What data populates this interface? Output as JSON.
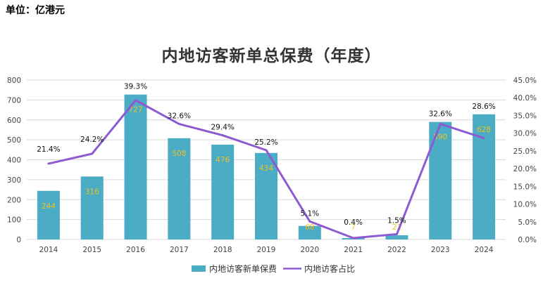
{
  "unit_text": "单位：亿港元",
  "colors": {
    "bar": "#4bacc6",
    "line": "#8e5ad2",
    "bar_label": "#f0c020",
    "grid": "#d9d9d9"
  },
  "chart_data": {
    "type": "bar",
    "title": "内地访客新单总保费（年度）",
    "categories": [
      "2014",
      "2015",
      "2016",
      "2017",
      "2018",
      "2019",
      "2020",
      "2021",
      "2022",
      "2023",
      "2024"
    ],
    "series": [
      {
        "name": "内地访客新单保费",
        "type": "bar",
        "axis": "left",
        "values": [
          244,
          316,
          727,
          508,
          476,
          434,
          68,
          7,
          21,
          590,
          628
        ]
      },
      {
        "name": "内地访客占比",
        "type": "line",
        "axis": "right",
        "values": [
          21.4,
          24.2,
          39.3,
          32.6,
          29.4,
          25.2,
          5.1,
          0.4,
          1.5,
          32.6,
          28.6
        ],
        "labels": [
          "21.4%",
          "24.2%",
          "39.3%",
          "32.6%",
          "29.4%",
          "25.2%",
          "5.1%",
          "0.4%",
          "1.5%",
          "32.6%",
          "28.6%"
        ]
      }
    ],
    "y_left": {
      "min": 0,
      "max": 800,
      "step": 100,
      "ticks": [
        "0",
        "100",
        "200",
        "300",
        "400",
        "500",
        "600",
        "700",
        "800"
      ]
    },
    "y_right": {
      "min": 0,
      "max": 45,
      "step": 5,
      "ticks": [
        "0.0%",
        "5.0%",
        "10.0%",
        "15.0%",
        "20.0%",
        "25.0%",
        "30.0%",
        "35.0%",
        "40.0%",
        "45.0%"
      ]
    },
    "legend": [
      "内地访客新单保费",
      "内地访客占比"
    ],
    "legend_position": "bottom",
    "grid": true
  }
}
